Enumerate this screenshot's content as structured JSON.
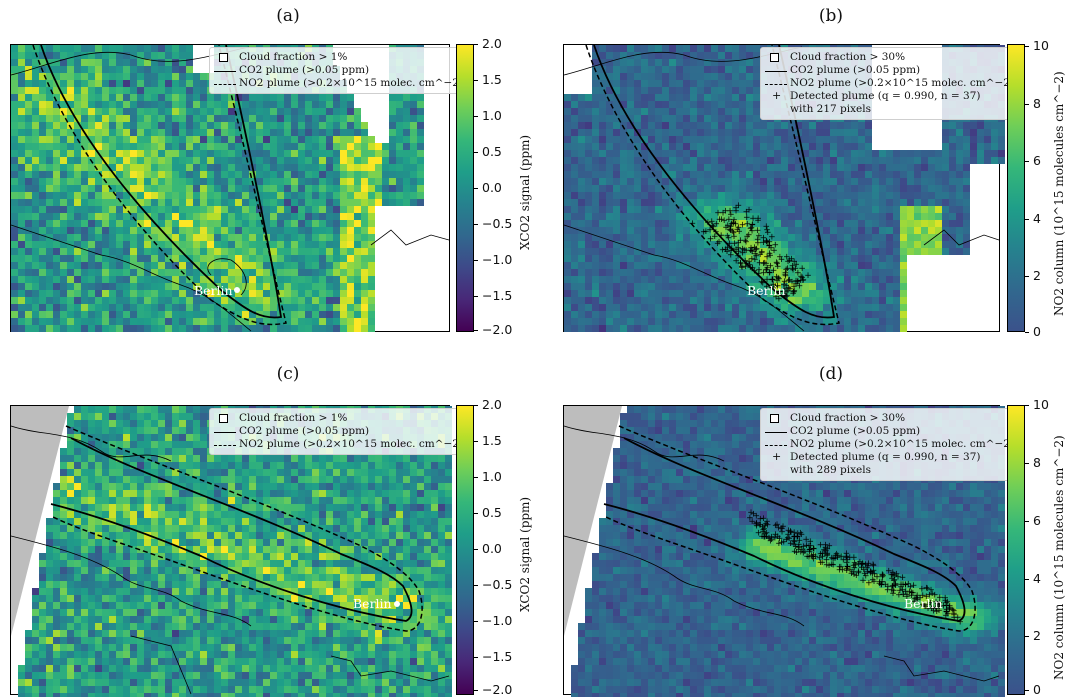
{
  "colors": {
    "cloud_fill": "#ffffff",
    "outside_fill": "#bdbdbd",
    "plume_line": "#000000",
    "detected_marker": "#000000",
    "city_label": "#ffffff"
  },
  "chart_data": [
    {
      "panel": "(a)",
      "type": "heatmap",
      "colormap": "viridis",
      "clim": [
        -2.0,
        2.0
      ],
      "colorbar_label": "XCO2 signal (ppm)",
      "colorbar_ticks": [
        "2.0",
        "1.5",
        "1.0",
        "0.5",
        "0.0",
        "−0.5",
        "−1.0",
        "−1.5",
        "−2.0"
      ],
      "legend": [
        "Cloud fraction > 1%",
        "CO2 plume (>0.05 ppm)",
        "NO2 plume (>0.2×10^15 molec. cm^−2)"
      ],
      "legend_placement": "top-right",
      "city": "Berlin"
    },
    {
      "panel": "(b)",
      "type": "heatmap",
      "colormap": "viridis",
      "clim": [
        0,
        10
      ],
      "colorbar_label": "NO2 column (10^15 molecules cm^−2)",
      "colorbar_ticks": [
        "10",
        "8",
        "6",
        "4",
        "2",
        "0"
      ],
      "legend": [
        "Cloud fraction > 30%",
        "CO2 plume (>0.05 ppm)",
        "NO2 plume (>0.2×10^15 molec. cm^−2)",
        "Detected plume (q = 0.990, n = 37)",
        "with 217 pixels"
      ],
      "legend_placement": "top-right",
      "detected_pixels": 217,
      "q": 0.99,
      "n": 37,
      "city": "Berlin"
    },
    {
      "panel": "(c)",
      "type": "heatmap",
      "colormap": "viridis",
      "clim": [
        -2.0,
        2.0
      ],
      "colorbar_label": "XCO2 signal (ppm)",
      "colorbar_ticks": [
        "2.0",
        "1.5",
        "1.0",
        "0.5",
        "0.0",
        "−0.5",
        "−1.0",
        "−1.5",
        "−2.0"
      ],
      "legend": [
        "Cloud fraction > 1%",
        "CO2 plume (>0.05 ppm)",
        "NO2 plume (>0.2×10^15 molec. cm^−2)"
      ],
      "legend_placement": "top-right",
      "city": "Berlin"
    },
    {
      "panel": "(d)",
      "type": "heatmap",
      "colormap": "viridis",
      "clim": [
        0,
        10
      ],
      "colorbar_label": "NO2 column (10^15 molecules cm^−2)",
      "colorbar_ticks": [
        "10",
        "8",
        "6",
        "4",
        "2",
        "0"
      ],
      "legend": [
        "Cloud fraction > 30%",
        "CO2 plume (>0.05 ppm)",
        "NO2 plume (>0.2×10^15 molec. cm^−2)",
        "Detected plume (q = 0.990, n = 37)",
        "with 289 pixels"
      ],
      "legend_placement": "top-right",
      "detected_pixels": 289,
      "q": 0.99,
      "n": 37,
      "city": "Berlin"
    }
  ]
}
